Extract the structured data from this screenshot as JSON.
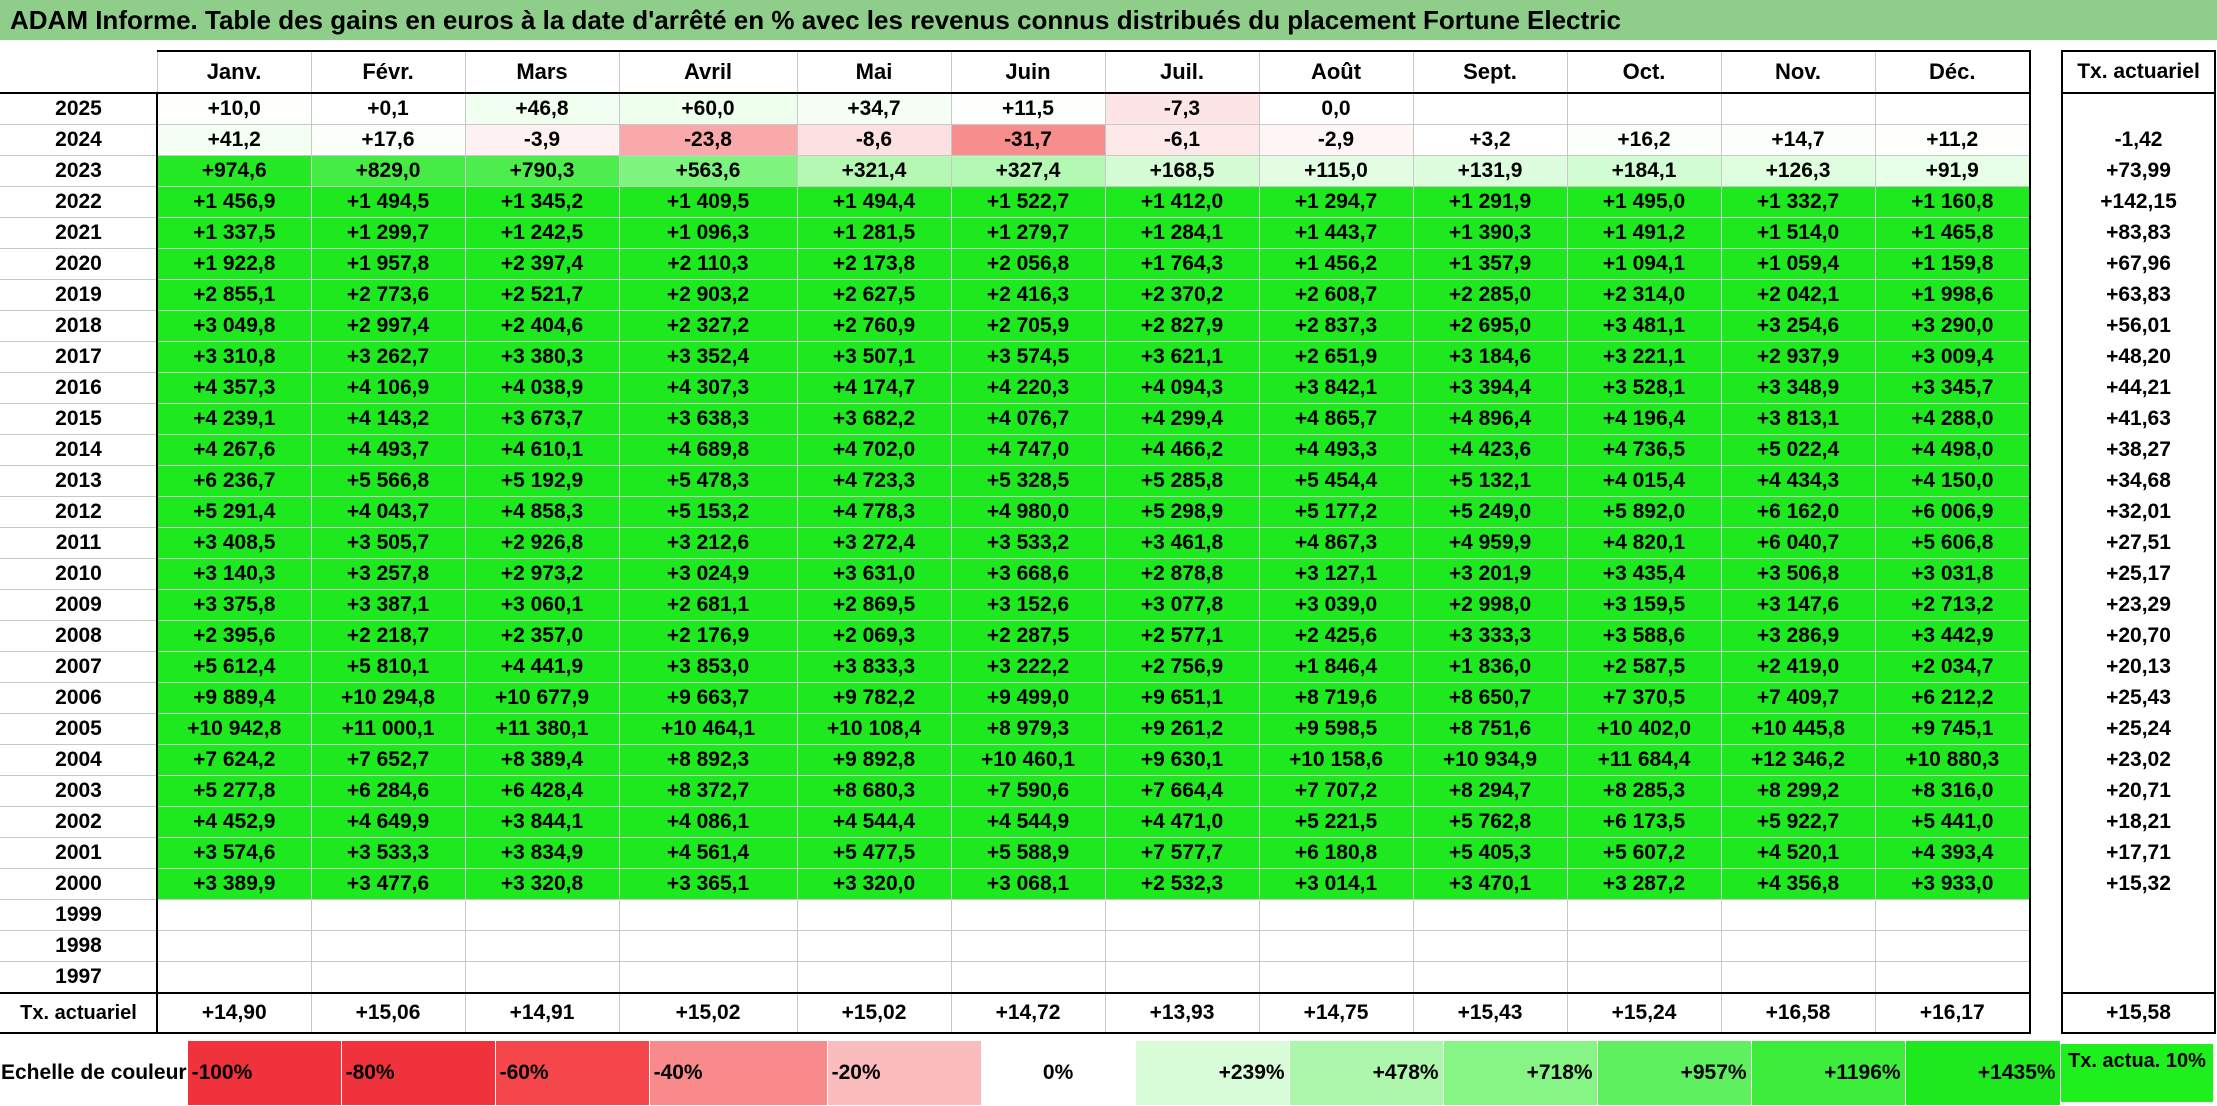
{
  "title": "ADAM Informe. Table des gains en euros à la date d'arrêté en % avec les revenus connus distribués du placement Fortune Electric",
  "months": [
    "Janv.",
    "Févr.",
    "Mars",
    "Avril",
    "Mai",
    "Juin",
    "Juil.",
    "Août",
    "Sept.",
    "Oct.",
    "Nov.",
    "Déc."
  ],
  "actuarial_header": "Tx. actuariel",
  "rows": [
    {
      "year": "2025",
      "cells": [
        "+10,0",
        "+0,1",
        "+46,8",
        "+60,0",
        "+34,7",
        "+11,5",
        "-7,3",
        "0,0",
        "",
        "",
        "",
        ""
      ],
      "act": ""
    },
    {
      "year": "2024",
      "cells": [
        "+41,2",
        "+17,6",
        "-3,9",
        "-23,8",
        "-8,6",
        "-31,7",
        "-6,1",
        "-2,9",
        "+3,2",
        "+16,2",
        "+14,7",
        "+11,2"
      ],
      "act": "-1,42"
    },
    {
      "year": "2023",
      "cells": [
        "+974,6",
        "+829,0",
        "+790,3",
        "+563,6",
        "+321,4",
        "+327,4",
        "+168,5",
        "+115,0",
        "+131,9",
        "+184,1",
        "+126,3",
        "+91,9"
      ],
      "act": "+73,99"
    },
    {
      "year": "2022",
      "cells": [
        "+1 456,9",
        "+1 494,5",
        "+1 345,2",
        "+1 409,5",
        "+1 494,4",
        "+1 522,7",
        "+1 412,0",
        "+1 294,7",
        "+1 291,9",
        "+1 495,0",
        "+1 332,7",
        "+1 160,8"
      ],
      "act": "+142,15"
    },
    {
      "year": "2021",
      "cells": [
        "+1 337,5",
        "+1 299,7",
        "+1 242,5",
        "+1 096,3",
        "+1 281,5",
        "+1 279,7",
        "+1 284,1",
        "+1 443,7",
        "+1 390,3",
        "+1 491,2",
        "+1 514,0",
        "+1 465,8"
      ],
      "act": "+83,83"
    },
    {
      "year": "2020",
      "cells": [
        "+1 922,8",
        "+1 957,8",
        "+2 397,4",
        "+2 110,3",
        "+2 173,8",
        "+2 056,8",
        "+1 764,3",
        "+1 456,2",
        "+1 357,9",
        "+1 094,1",
        "+1 059,4",
        "+1 159,8"
      ],
      "act": "+67,96"
    },
    {
      "year": "2019",
      "cells": [
        "+2 855,1",
        "+2 773,6",
        "+2 521,7",
        "+2 903,2",
        "+2 627,5",
        "+2 416,3",
        "+2 370,2",
        "+2 608,7",
        "+2 285,0",
        "+2 314,0",
        "+2 042,1",
        "+1 998,6"
      ],
      "act": "+63,83"
    },
    {
      "year": "2018",
      "cells": [
        "+3 049,8",
        "+2 997,4",
        "+2 404,6",
        "+2 327,2",
        "+2 760,9",
        "+2 705,9",
        "+2 827,9",
        "+2 837,3",
        "+2 695,0",
        "+3 481,1",
        "+3 254,6",
        "+3 290,0"
      ],
      "act": "+56,01"
    },
    {
      "year": "2017",
      "cells": [
        "+3 310,8",
        "+3 262,7",
        "+3 380,3",
        "+3 352,4",
        "+3 507,1",
        "+3 574,5",
        "+3 621,1",
        "+2 651,9",
        "+3 184,6",
        "+3 221,1",
        "+2 937,9",
        "+3 009,4"
      ],
      "act": "+48,20"
    },
    {
      "year": "2016",
      "cells": [
        "+4 357,3",
        "+4 106,9",
        "+4 038,9",
        "+4 307,3",
        "+4 174,7",
        "+4 220,3",
        "+4 094,3",
        "+3 842,1",
        "+3 394,4",
        "+3 528,1",
        "+3 348,9",
        "+3 345,7"
      ],
      "act": "+44,21"
    },
    {
      "year": "2015",
      "cells": [
        "+4 239,1",
        "+4 143,2",
        "+3 673,7",
        "+3 638,3",
        "+3 682,2",
        "+4 076,7",
        "+4 299,4",
        "+4 865,7",
        "+4 896,4",
        "+4 196,4",
        "+3 813,1",
        "+4 288,0"
      ],
      "act": "+41,63"
    },
    {
      "year": "2014",
      "cells": [
        "+4 267,6",
        "+4 493,7",
        "+4 610,1",
        "+4 689,8",
        "+4 702,0",
        "+4 747,0",
        "+4 466,2",
        "+4 493,3",
        "+4 423,6",
        "+4 736,5",
        "+5 022,4",
        "+4 498,0"
      ],
      "act": "+38,27"
    },
    {
      "year": "2013",
      "cells": [
        "+6 236,7",
        "+5 566,8",
        "+5 192,9",
        "+5 478,3",
        "+4 723,3",
        "+5 328,5",
        "+5 285,8",
        "+5 454,4",
        "+5 132,1",
        "+4 015,4",
        "+4 434,3",
        "+4 150,0"
      ],
      "act": "+34,68"
    },
    {
      "year": "2012",
      "cells": [
        "+5 291,4",
        "+4 043,7",
        "+4 858,3",
        "+5 153,2",
        "+4 778,3",
        "+4 980,0",
        "+5 298,9",
        "+5 177,2",
        "+5 249,0",
        "+5 892,0",
        "+6 162,0",
        "+6 006,9"
      ],
      "act": "+32,01"
    },
    {
      "year": "2011",
      "cells": [
        "+3 408,5",
        "+3 505,7",
        "+2 926,8",
        "+3 212,6",
        "+3 272,4",
        "+3 533,2",
        "+3 461,8",
        "+4 867,3",
        "+4 959,9",
        "+4 820,1",
        "+6 040,7",
        "+5 606,8"
      ],
      "act": "+27,51"
    },
    {
      "year": "2010",
      "cells": [
        "+3 140,3",
        "+3 257,8",
        "+2 973,2",
        "+3 024,9",
        "+3 631,0",
        "+3 668,6",
        "+2 878,8",
        "+3 127,1",
        "+3 201,9",
        "+3 435,4",
        "+3 506,8",
        "+3 031,8"
      ],
      "act": "+25,17"
    },
    {
      "year": "2009",
      "cells": [
        "+3 375,8",
        "+3 387,1",
        "+3 060,1",
        "+2 681,1",
        "+2 869,5",
        "+3 152,6",
        "+3 077,8",
        "+3 039,0",
        "+2 998,0",
        "+3 159,5",
        "+3 147,6",
        "+2 713,2"
      ],
      "act": "+23,29"
    },
    {
      "year": "2008",
      "cells": [
        "+2 395,6",
        "+2 218,7",
        "+2 357,0",
        "+2 176,9",
        "+2 069,3",
        "+2 287,5",
        "+2 577,1",
        "+2 425,6",
        "+3 333,3",
        "+3 588,6",
        "+3 286,9",
        "+3 442,9"
      ],
      "act": "+20,70"
    },
    {
      "year": "2007",
      "cells": [
        "+5 612,4",
        "+5 810,1",
        "+4 441,9",
        "+3 853,0",
        "+3 833,3",
        "+3 222,2",
        "+2 756,9",
        "+1 846,4",
        "+1 836,0",
        "+2 587,5",
        "+2 419,0",
        "+2 034,7"
      ],
      "act": "+20,13"
    },
    {
      "year": "2006",
      "cells": [
        "+9 889,4",
        "+10 294,8",
        "+10 677,9",
        "+9 663,7",
        "+9 782,2",
        "+9 499,0",
        "+9 651,1",
        "+8 719,6",
        "+8 650,7",
        "+7 370,5",
        "+7 409,7",
        "+6 212,2"
      ],
      "act": "+25,43"
    },
    {
      "year": "2005",
      "cells": [
        "+10 942,8",
        "+11 000,1",
        "+11 380,1",
        "+10 464,1",
        "+10 108,4",
        "+8 979,3",
        "+9 261,2",
        "+9 598,5",
        "+8 751,6",
        "+10 402,0",
        "+10 445,8",
        "+9 745,1"
      ],
      "act": "+25,24"
    },
    {
      "year": "2004",
      "cells": [
        "+7 624,2",
        "+7 652,7",
        "+8 389,4",
        "+8 892,3",
        "+9 892,8",
        "+10 460,1",
        "+9 630,1",
        "+10 158,6",
        "+10 934,9",
        "+11 684,4",
        "+12 346,2",
        "+10 880,3"
      ],
      "act": "+23,02"
    },
    {
      "year": "2003",
      "cells": [
        "+5 277,8",
        "+6 284,6",
        "+6 428,4",
        "+8 372,7",
        "+8 680,3",
        "+7 590,6",
        "+7 664,4",
        "+7 707,2",
        "+8 294,7",
        "+8 285,3",
        "+8 299,2",
        "+8 316,0"
      ],
      "act": "+20,71"
    },
    {
      "year": "2002",
      "cells": [
        "+4 452,9",
        "+4 649,9",
        "+3 844,1",
        "+4 086,1",
        "+4 544,4",
        "+4 544,9",
        "+4 471,0",
        "+5 221,5",
        "+5 762,8",
        "+6 173,5",
        "+5 922,7",
        "+5 441,0"
      ],
      "act": "+18,21"
    },
    {
      "year": "2001",
      "cells": [
        "+3 574,6",
        "+3 533,3",
        "+3 834,9",
        "+4 561,4",
        "+5 477,5",
        "+5 588,9",
        "+7 577,7",
        "+6 180,8",
        "+5 405,3",
        "+5 607,2",
        "+4 520,1",
        "+4 393,4"
      ],
      "act": "+17,71"
    },
    {
      "year": "2000",
      "cells": [
        "+3 389,9",
        "+3 477,6",
        "+3 320,8",
        "+3 365,1",
        "+3 320,0",
        "+3 068,1",
        "+2 532,3",
        "+3 014,1",
        "+3 470,1",
        "+3 287,2",
        "+4 356,8",
        "+3 933,0"
      ],
      "act": "+15,32"
    },
    {
      "year": "1999",
      "cells": [
        "",
        "",
        "",
        "",
        "",
        "",
        "",
        "",
        "",
        "",
        "",
        ""
      ],
      "act": ""
    },
    {
      "year": "1998",
      "cells": [
        "",
        "",
        "",
        "",
        "",
        "",
        "",
        "",
        "",
        "",
        "",
        ""
      ],
      "act": ""
    },
    {
      "year": "1997",
      "cells": [
        "",
        "",
        "",
        "",
        "",
        "",
        "",
        "",
        "",
        "",
        "",
        ""
      ],
      "act": ""
    }
  ],
  "tx_row": {
    "label": "Tx. actuariel",
    "cells": [
      "+14,90",
      "+15,06",
      "+14,91",
      "+15,02",
      "+15,02",
      "+14,72",
      "+13,93",
      "+14,75",
      "+15,43",
      "+15,24",
      "+16,58",
      "+16,17"
    ],
    "act": "+15,58"
  },
  "scale": {
    "label": "Echelle de couleur",
    "items": [
      {
        "text": "-100%",
        "color": "#f0323c"
      },
      {
        "text": "-80%",
        "color": "#f0323c"
      },
      {
        "text": "-60%",
        "color": "#f5464b"
      },
      {
        "text": "-40%",
        "color": "#f88a8c"
      },
      {
        "text": "-20%",
        "color": "#fbbcbd"
      },
      {
        "text": "0%",
        "color": "#ffffff"
      },
      {
        "text": "+239%",
        "color": "#d8fbd8"
      },
      {
        "text": "+478%",
        "color": "#adf7ad"
      },
      {
        "text": "+718%",
        "color": "#86f586"
      },
      {
        "text": "+957%",
        "color": "#5ef05e"
      },
      {
        "text": "+1196%",
        "color": "#3ced3c"
      },
      {
        "text": "+1435%",
        "color": "#1ee81e"
      }
    ],
    "act_legend": "Tx. actua. 10%"
  },
  "colors": {
    "title_bg": "#8fce8a",
    "strong_green": "#1ee81e",
    "act_green": "#1ef01e"
  }
}
